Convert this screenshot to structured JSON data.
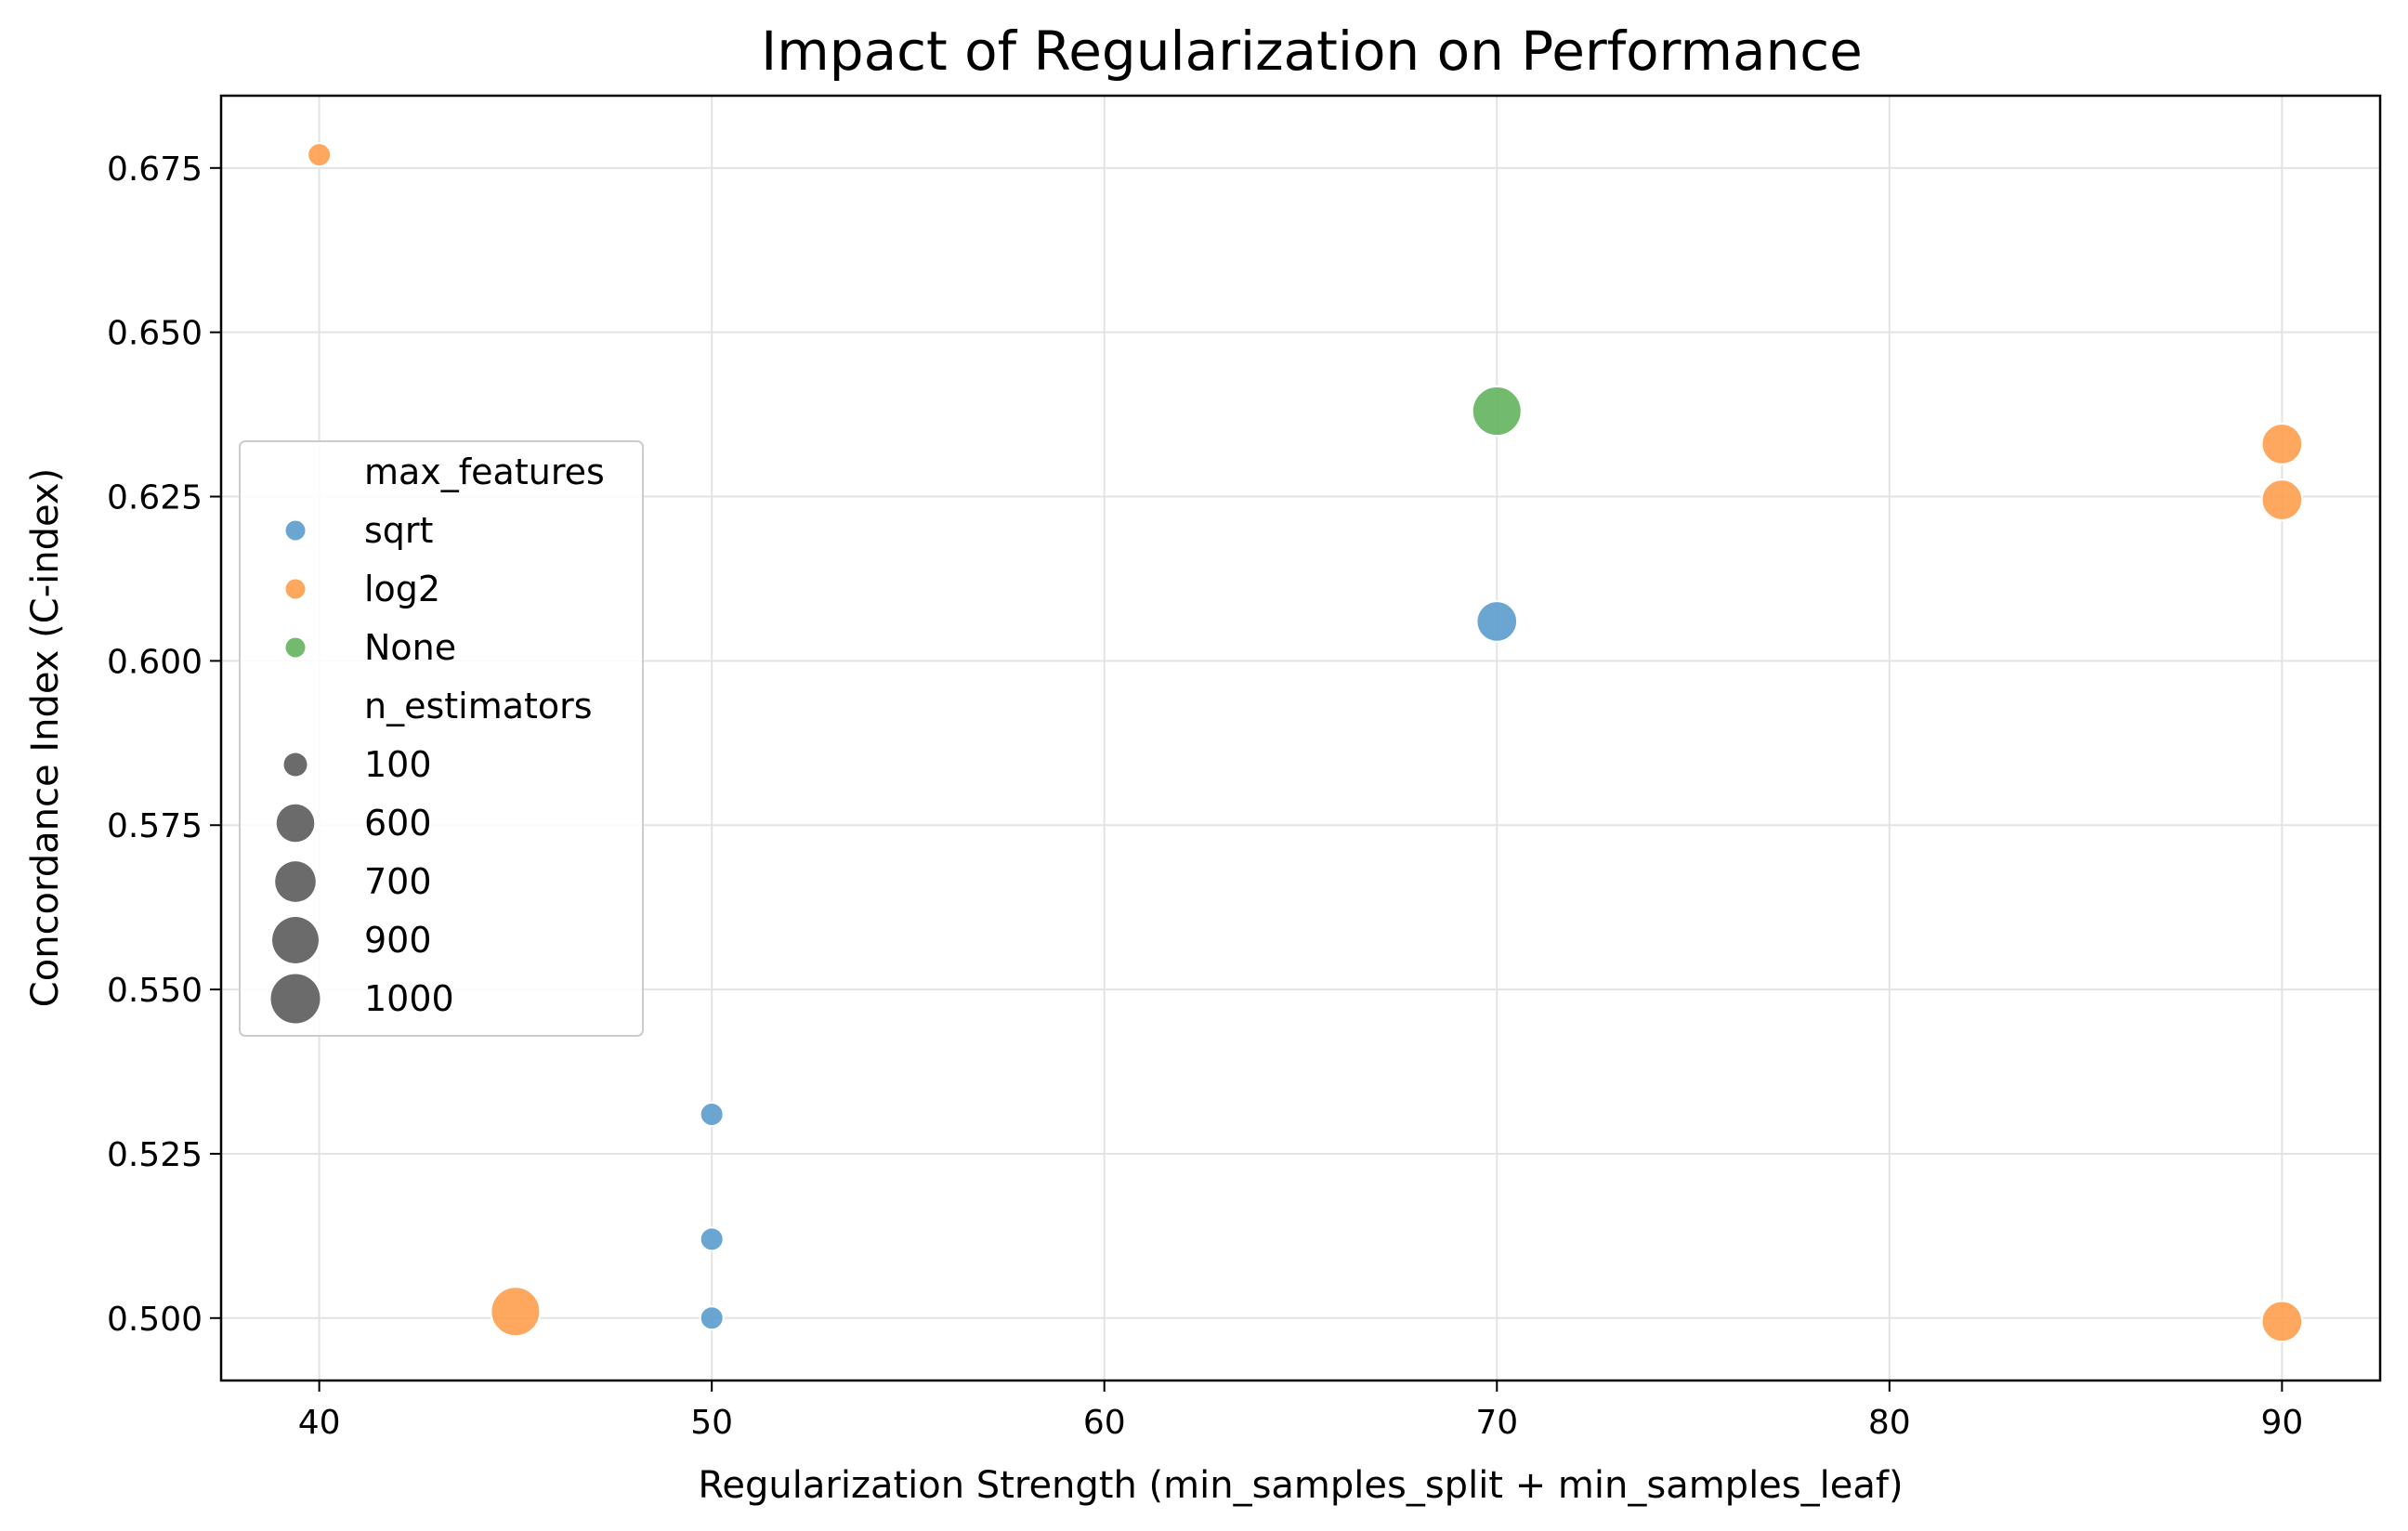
{
  "chart_data": {
    "type": "scatter",
    "title": "Impact of Regularization on Performance",
    "xlabel": "Regularization Strength (min_samples_split + min_samples_leaf)",
    "ylabel": "Concordance Index (C-index)",
    "xlim": [
      37.5,
      92.5
    ],
    "ylim": [
      0.4905,
      0.686
    ],
    "xticks": [
      40,
      50,
      60,
      70,
      80,
      90
    ],
    "yticks": [
      0.5,
      0.525,
      0.55,
      0.575,
      0.6,
      0.625,
      0.65,
      0.675
    ],
    "xtick_labels": [
      "40",
      "50",
      "60",
      "70",
      "80",
      "90"
    ],
    "ytick_labels": [
      "0.500",
      "0.525",
      "0.550",
      "0.575",
      "0.600",
      "0.625",
      "0.650",
      "0.675"
    ],
    "grid": true,
    "legend_position": "center-left",
    "hue_title": "max_features",
    "size_title": "n_estimators",
    "hue_levels": [
      {
        "name": "sqrt",
        "color": "#5b9bcc"
      },
      {
        "name": "log2",
        "color": "#fd9e4d"
      },
      {
        "name": "None",
        "color": "#63b45e"
      }
    ],
    "size_levels": [
      "100",
      "600",
      "700",
      "900",
      "1000"
    ],
    "size_values": [
      100,
      600,
      700,
      900,
      1000
    ],
    "points": [
      {
        "x": 40,
        "y": 0.677,
        "max_features": "log2",
        "n_estimators": 100
      },
      {
        "x": 45,
        "y": 0.501,
        "max_features": "log2",
        "n_estimators": 1000
      },
      {
        "x": 50,
        "y": 0.531,
        "max_features": "sqrt",
        "n_estimators": 100
      },
      {
        "x": 50,
        "y": 0.512,
        "max_features": "sqrt",
        "n_estimators": 100
      },
      {
        "x": 50,
        "y": 0.5,
        "max_features": "sqrt",
        "n_estimators": 100
      },
      {
        "x": 70,
        "y": 0.638,
        "max_features": "None",
        "n_estimators": 1000
      },
      {
        "x": 70,
        "y": 0.606,
        "max_features": "sqrt",
        "n_estimators": 700
      },
      {
        "x": 90,
        "y": 0.633,
        "max_features": "log2",
        "n_estimators": 700
      },
      {
        "x": 90,
        "y": 0.6245,
        "max_features": "log2",
        "n_estimators": 700
      },
      {
        "x": 90,
        "y": 0.4995,
        "max_features": "log2",
        "n_estimators": 700
      }
    ]
  }
}
